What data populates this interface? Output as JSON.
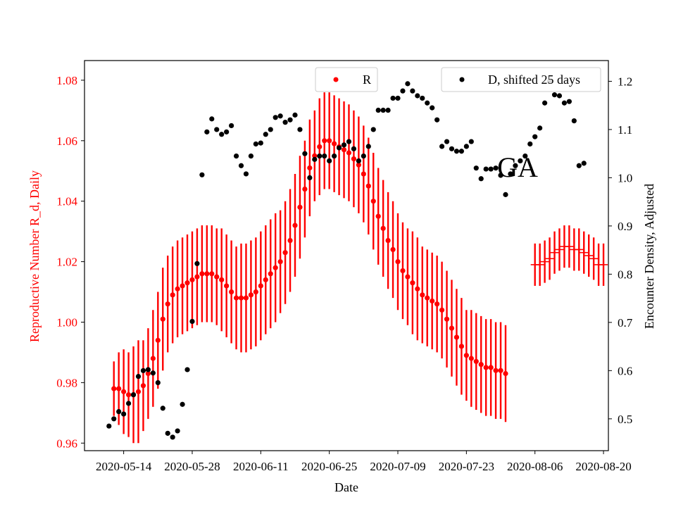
{
  "chart_data": {
    "type": "scatter",
    "xlabel": "Date",
    "ylabel_left": "Reproductive Number R_d, Daily",
    "ylabel_right": "Encounter Density, Adjusted",
    "annotation": "GA",
    "x_ticks": [
      "2020-05-14",
      "2020-05-28",
      "2020-06-11",
      "2020-06-25",
      "2020-07-09",
      "2020-07-23",
      "2020-08-06",
      "2020-08-20"
    ],
    "y_left_ticks": [
      "0.96",
      "0.98",
      "1.00",
      "1.02",
      "1.04",
      "1.06",
      "1.08"
    ],
    "y_right_ticks": [
      "0.5",
      "0.6",
      "0.7",
      "0.8",
      "0.9",
      "1.0",
      "1.1",
      "1.2"
    ],
    "xlim": [
      "2020-05-06",
      "2020-08-21"
    ],
    "ylim_left": [
      0.9575,
      1.0865
    ],
    "ylim_right": [
      0.434,
      1.243
    ],
    "legend_left": {
      "label": "R",
      "placement": "top-center"
    },
    "legend_right": {
      "label": "D, shifted 25 days",
      "placement": "top-right"
    },
    "colors": {
      "R": "#ff0000",
      "D": "#000000",
      "left_axis": "#ff0000",
      "right_axis": "#000000"
    },
    "series_R": {
      "name": "R",
      "axis": "left",
      "start_date": "2020-05-12",
      "values": [
        0.978,
        0.978,
        0.977,
        0.976,
        0.976,
        0.977,
        0.979,
        0.983,
        0.988,
        0.994,
        1.001,
        1.006,
        1.009,
        1.011,
        1.012,
        1.013,
        1.014,
        1.015,
        1.016,
        1.016,
        1.016,
        1.015,
        1.014,
        1.012,
        1.01,
        1.008,
        1.008,
        1.008,
        1.009,
        1.01,
        1.012,
        1.014,
        1.016,
        1.018,
        1.02,
        1.023,
        1.027,
        1.032,
        1.038,
        1.044,
        1.051,
        1.055,
        1.058,
        1.06,
        1.06,
        1.059,
        1.058,
        1.057,
        1.056,
        1.054,
        1.052,
        1.049,
        1.045,
        1.04,
        1.035,
        1.031,
        1.027,
        1.024,
        1.02,
        1.017,
        1.015,
        1.013,
        1.011,
        1.009,
        1.008,
        1.007,
        1.006,
        1.004,
        1.001,
        0.998,
        0.995,
        0.992,
        0.989,
        0.988,
        0.987,
        0.986,
        0.985,
        0.985,
        0.984,
        0.984,
        0.983
      ],
      "err_low": [
        0.969,
        0.966,
        0.963,
        0.962,
        0.96,
        0.96,
        0.964,
        0.968,
        0.972,
        0.978,
        0.984,
        0.99,
        0.993,
        0.995,
        0.996,
        0.997,
        0.998,
        0.999,
        1.0,
        1.0,
        1.0,
        0.999,
        0.997,
        0.995,
        0.993,
        0.991,
        0.99,
        0.99,
        0.991,
        0.992,
        0.994,
        0.996,
        0.998,
        1.0,
        1.003,
        1.006,
        1.01,
        1.015,
        1.021,
        1.028,
        1.035,
        1.04,
        1.042,
        1.044,
        1.044,
        1.043,
        1.042,
        1.041,
        1.04,
        1.038,
        1.036,
        1.033,
        1.029,
        1.024,
        1.019,
        1.015,
        1.011,
        1.008,
        1.004,
        1.001,
        0.999,
        0.996,
        0.994,
        0.993,
        0.992,
        0.991,
        0.99,
        0.988,
        0.985,
        0.982,
        0.979,
        0.976,
        0.974,
        0.972,
        0.971,
        0.97,
        0.969,
        0.969,
        0.968,
        0.968,
        0.967
      ],
      "err_high": [
        0.987,
        0.99,
        0.991,
        0.99,
        0.992,
        0.994,
        0.994,
        0.998,
        1.004,
        1.01,
        1.018,
        1.022,
        1.025,
        1.027,
        1.028,
        1.029,
        1.03,
        1.031,
        1.032,
        1.032,
        1.032,
        1.031,
        1.031,
        1.029,
        1.027,
        1.025,
        1.026,
        1.026,
        1.027,
        1.028,
        1.03,
        1.032,
        1.034,
        1.036,
        1.037,
        1.04,
        1.044,
        1.049,
        1.055,
        1.06,
        1.067,
        1.07,
        1.074,
        1.076,
        1.076,
        1.075,
        1.074,
        1.073,
        1.072,
        1.07,
        1.068,
        1.065,
        1.061,
        1.056,
        1.051,
        1.047,
        1.043,
        1.04,
        1.036,
        1.033,
        1.031,
        1.03,
        1.028,
        1.025,
        1.024,
        1.023,
        1.022,
        1.02,
        1.017,
        1.014,
        1.011,
        1.008,
        1.004,
        1.004,
        1.003,
        1.002,
        1.001,
        1.001,
        1.0,
        1.0,
        0.999
      ]
    },
    "series_R_late": {
      "name": "R",
      "axis": "left",
      "start_date": "2020-08-06",
      "values": [
        1.019,
        1.019,
        1.02,
        1.021,
        1.023,
        1.024,
        1.025,
        1.025,
        1.024,
        1.024,
        1.023,
        1.022,
        1.021,
        1.019,
        1.019
      ],
      "err_low": [
        1.012,
        1.012,
        1.013,
        1.014,
        1.016,
        1.017,
        1.018,
        1.018,
        1.017,
        1.017,
        1.016,
        1.015,
        1.014,
        1.012,
        1.012
      ],
      "err_high": [
        1.026,
        1.026,
        1.027,
        1.028,
        1.03,
        1.031,
        1.032,
        1.032,
        1.031,
        1.031,
        1.03,
        1.029,
        1.028,
        1.026,
        1.026
      ]
    },
    "series_D": {
      "name": "D, shifted 25 days",
      "axis": "right",
      "start_date": "2020-05-11",
      "values": [
        0.485,
        0.5,
        0.515,
        0.51,
        0.532,
        0.55,
        0.588,
        0.6,
        0.602,
        0.595,
        0.575,
        0.522,
        0.47,
        0.462,
        0.475,
        0.53,
        0.602,
        0.702,
        0.822,
        1.006,
        1.095,
        1.122,
        1.1,
        1.09,
        1.095,
        1.108,
        1.045,
        1.025,
        1.008,
        1.045,
        1.07,
        1.072,
        1.09,
        1.1,
        1.125,
        1.128,
        1.115,
        1.12,
        1.13,
        1.1,
        1.05,
        1.0,
        1.038,
        1.045,
        1.045,
        1.035,
        1.045,
        1.062,
        1.068,
        1.075,
        1.06,
        1.035,
        1.045,
        1.065,
        1.1,
        1.14,
        1.14,
        1.14,
        1.165,
        1.165,
        1.18,
        1.195,
        1.18,
        1.17,
        1.165,
        1.155,
        1.145,
        1.12,
        1.065,
        1.075,
        1.06,
        1.055,
        1.055,
        1.065,
        1.075,
        1.02,
        0.998,
        1.018,
        1.018,
        1.02,
        1.005,
        0.965,
        1.008,
        1.025,
        1.035,
        1.045,
        1.07,
        1.085,
        1.103,
        1.155,
        1.2,
        1.172,
        1.17,
        1.155,
        1.158,
        1.118,
        1.025,
        1.03
      ]
    }
  }
}
